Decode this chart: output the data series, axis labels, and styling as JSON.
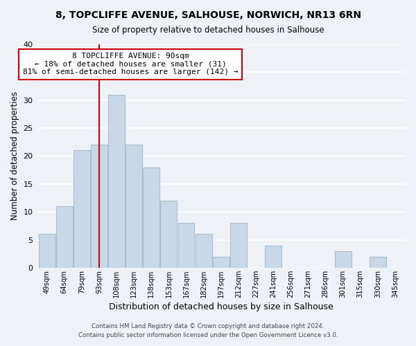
{
  "title": "8, TOPCLIFFE AVENUE, SALHOUSE, NORWICH, NR13 6RN",
  "subtitle": "Size of property relative to detached houses in Salhouse",
  "xlabel": "Distribution of detached houses by size in Salhouse",
  "ylabel": "Number of detached properties",
  "bar_color": "#c8d8e8",
  "bar_edge_color": "#a8bece",
  "background_color": "#eef2f7",
  "grid_color": "#ffffff",
  "categories": [
    "49sqm",
    "64sqm",
    "79sqm",
    "93sqm",
    "108sqm",
    "123sqm",
    "138sqm",
    "153sqm",
    "167sqm",
    "182sqm",
    "197sqm",
    "212sqm",
    "227sqm",
    "241sqm",
    "256sqm",
    "271sqm",
    "286sqm",
    "301sqm",
    "315sqm",
    "330sqm",
    "345sqm"
  ],
  "values": [
    6,
    11,
    21,
    22,
    31,
    22,
    18,
    12,
    8,
    6,
    2,
    8,
    0,
    4,
    0,
    0,
    0,
    3,
    0,
    2,
    0
  ],
  "ylim": [
    0,
    40
  ],
  "yticks": [
    0,
    5,
    10,
    15,
    20,
    25,
    30,
    35,
    40
  ],
  "vline_index": 3,
  "vline_color": "#cc0000",
  "annotation_line1": "8 TOPCLIFFE AVENUE: 90sqm",
  "annotation_line2": "← 18% of detached houses are smaller (31)",
  "annotation_line3": "81% of semi-detached houses are larger (142) →",
  "annotation_box_color": "white",
  "annotation_box_edge": "#cc0000",
  "footer1": "Contains HM Land Registry data © Crown copyright and database right 2024.",
  "footer2": "Contains public sector information licensed under the Open Government Licence v3.0."
}
